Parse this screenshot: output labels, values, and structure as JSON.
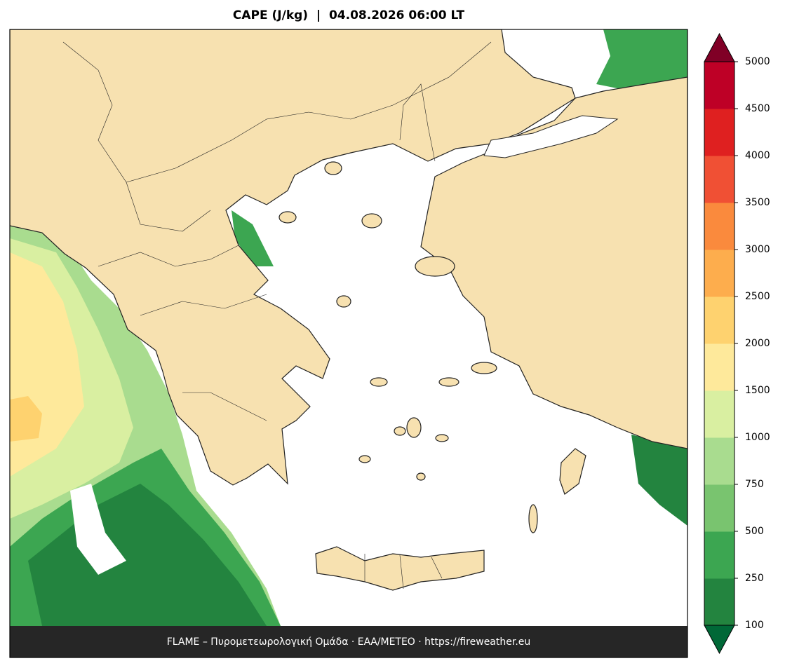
{
  "title": "CAPE (J/kg)  |  04.08.2026 06:00 LT",
  "footer": "FLAME – Πυρομετεωρολογική Ομάδα · ΕΑΑ/METEO · https://fireweather.eu",
  "colorbar": {
    "levels": [
      100,
      250,
      500,
      750,
      1000,
      1500,
      2000,
      2500,
      3000,
      3500,
      4000,
      4500,
      5000
    ],
    "colors": [
      "#23843f",
      "#3ca651",
      "#79c46f",
      "#a9dc8f",
      "#d9efa1",
      "#fee99b",
      "#fed26f",
      "#fdad4d",
      "#fa8a3d",
      "#f05034",
      "#df2020",
      "#be0026"
    ],
    "under_color": "#006837",
    "over_color": "#800026"
  }
}
